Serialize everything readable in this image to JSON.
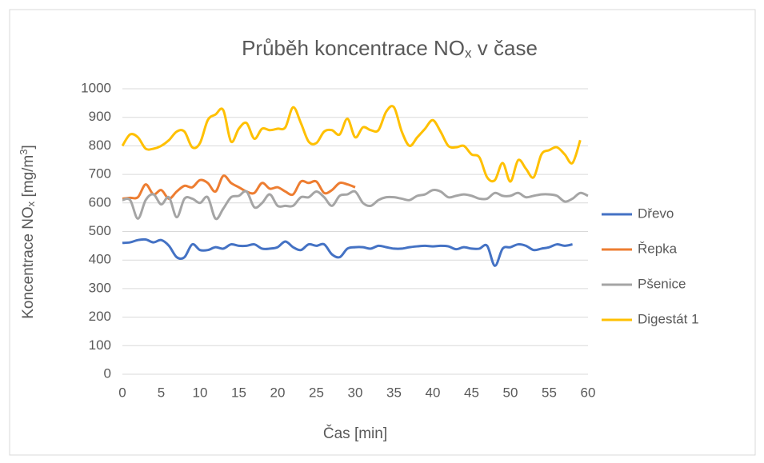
{
  "chart_data": {
    "type": "line",
    "title": [
      "Průběh koncentrace NO",
      "x",
      " v čase"
    ],
    "xlabel": "Čas [min]",
    "ylabel": [
      "Koncentrace NO",
      "x",
      " [mg/m",
      "3",
      "]"
    ],
    "x": [
      0,
      1,
      2,
      3,
      4,
      5,
      6,
      7,
      8,
      9,
      10,
      11,
      12,
      13,
      14,
      15,
      16,
      17,
      18,
      19,
      20,
      21,
      22,
      23,
      24,
      25,
      26,
      27,
      28,
      29,
      30,
      31,
      32,
      33,
      34,
      35,
      36,
      37,
      38,
      39,
      40,
      41,
      42,
      43,
      44,
      45,
      46,
      47,
      48,
      49,
      50,
      51,
      52,
      53,
      54,
      55,
      56,
      57,
      58,
      59,
      60
    ],
    "series": [
      {
        "name": "Dřevo",
        "color": "#4472c4",
        "values": [
          460,
          462,
          470,
          472,
          462,
          470,
          450,
          410,
          410,
          455,
          435,
          435,
          445,
          440,
          455,
          450,
          450,
          455,
          440,
          440,
          445,
          465,
          445,
          435,
          455,
          450,
          455,
          420,
          410,
          440,
          445,
          445,
          440,
          450,
          445,
          440,
          440,
          445,
          448,
          450,
          448,
          450,
          448,
          438,
          445,
          440,
          440,
          450,
          380,
          440,
          445,
          455,
          450,
          435,
          440,
          445,
          455,
          450,
          455,
          null,
          null
        ]
      },
      {
        "name": "Řepka",
        "color": "#ed7d31",
        "values": [
          615,
          618,
          620,
          665,
          630,
          645,
          615,
          640,
          660,
          655,
          680,
          670,
          640,
          695,
          670,
          655,
          640,
          635,
          670,
          650,
          655,
          640,
          630,
          675,
          670,
          675,
          635,
          645,
          670,
          665,
          655,
          null,
          null,
          null,
          null,
          null,
          null,
          null,
          null,
          null,
          null,
          null,
          null,
          null,
          null,
          null,
          null,
          null,
          null,
          null,
          null,
          null,
          null,
          null,
          null,
          null,
          null,
          null,
          null,
          null,
          null
        ]
      },
      {
        "name": "Pšenice",
        "color": "#a5a5a5",
        "values": [
          610,
          610,
          545,
          610,
          630,
          595,
          620,
          550,
          615,
          615,
          600,
          620,
          545,
          580,
          620,
          625,
          640,
          585,
          600,
          630,
          590,
          590,
          590,
          620,
          620,
          640,
          620,
          590,
          625,
          630,
          640,
          600,
          590,
          610,
          620,
          620,
          615,
          610,
          625,
          630,
          645,
          640,
          620,
          625,
          630,
          625,
          615,
          615,
          635,
          625,
          625,
          635,
          620,
          625,
          630,
          630,
          625,
          605,
          615,
          635,
          625
        ]
      },
      {
        "name": "Digestát 1",
        "color": "#ffc000",
        "values": [
          800,
          840,
          830,
          790,
          790,
          800,
          820,
          850,
          850,
          795,
          810,
          890,
          910,
          925,
          815,
          860,
          880,
          825,
          860,
          855,
          860,
          865,
          935,
          880,
          815,
          810,
          850,
          855,
          840,
          895,
          830,
          865,
          855,
          855,
          920,
          935,
          850,
          800,
          830,
          860,
          890,
          850,
          800,
          795,
          800,
          770,
          760,
          690,
          680,
          740,
          675,
          750,
          720,
          690,
          770,
          785,
          795,
          770,
          740,
          820,
          null
        ]
      }
    ],
    "xlim": [
      0,
      60
    ],
    "xticks": [
      0,
      5,
      10,
      15,
      20,
      25,
      30,
      35,
      40,
      45,
      50,
      55,
      60
    ],
    "ylim": [
      0,
      1000
    ],
    "yticks": [
      0,
      100,
      200,
      300,
      400,
      500,
      600,
      700,
      800,
      900,
      1000
    ],
    "grid": true,
    "legend": "right"
  }
}
